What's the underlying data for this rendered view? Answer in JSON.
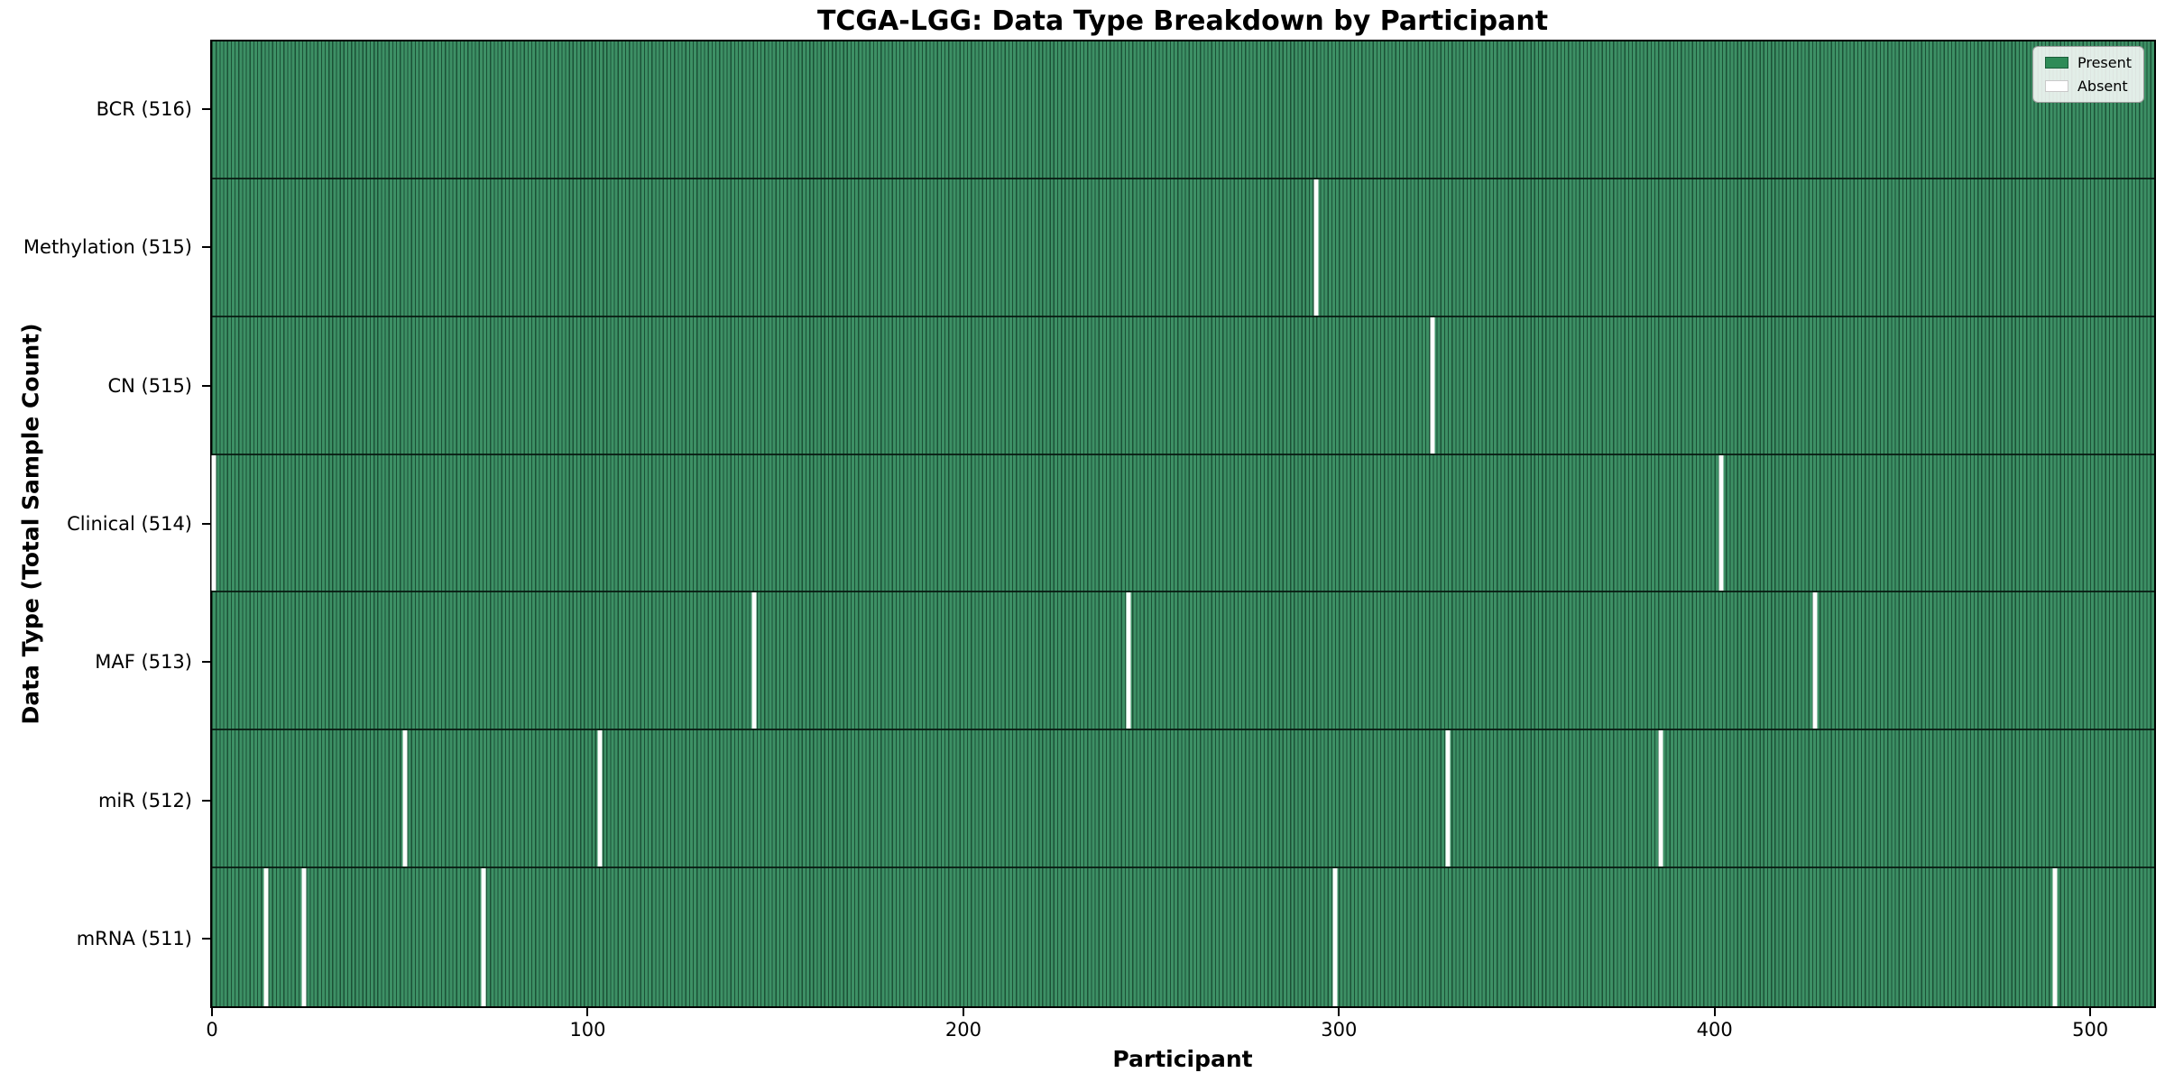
{
  "chart_data": {
    "type": "heatmap",
    "title": "TCGA-LGG: Data Type Breakdown by Participant",
    "xlabel": "Participant",
    "ylabel": "Data Type (Total Sample Count)",
    "x_ticks": [
      0,
      100,
      200,
      300,
      400,
      500
    ],
    "xlim": [
      -0.5,
      517.5
    ],
    "n_participants": 516,
    "grid": false,
    "legend_position": "upper right",
    "legend": [
      {
        "label": "Present",
        "color": "#2e8b57"
      },
      {
        "label": "Absent",
        "color": "#ffffff"
      }
    ],
    "rows": [
      {
        "label": "BCR (516)",
        "data_type": "BCR",
        "present_count": 516,
        "absent_participants": []
      },
      {
        "label": "Methylation (515)",
        "data_type": "Methylation",
        "present_count": 515,
        "absent_participants": [
          294
        ]
      },
      {
        "label": "CN (515)",
        "data_type": "CN",
        "present_count": 515,
        "absent_participants": [
          325
        ]
      },
      {
        "label": "Clinical (514)",
        "data_type": "Clinical",
        "present_count": 514,
        "absent_participants": [
          0,
          402
        ]
      },
      {
        "label": "MAF (513)",
        "data_type": "MAF",
        "present_count": 513,
        "absent_participants": [
          144,
          244,
          427
        ]
      },
      {
        "label": "miR (512)",
        "data_type": "miR",
        "present_count": 512,
        "absent_participants": [
          51,
          103,
          329,
          386
        ]
      },
      {
        "label": "mRNA (511)",
        "data_type": "mRNA",
        "present_count": 511,
        "absent_participants": [
          14,
          24,
          72,
          299,
          491
        ]
      }
    ],
    "colors": {
      "present": "#2e8b57",
      "absent": "#ffffff",
      "bar_body": "#3d9065",
      "bar_edge": "#072a1a",
      "row_separator": "#06160e",
      "background": "#ffffff"
    }
  }
}
